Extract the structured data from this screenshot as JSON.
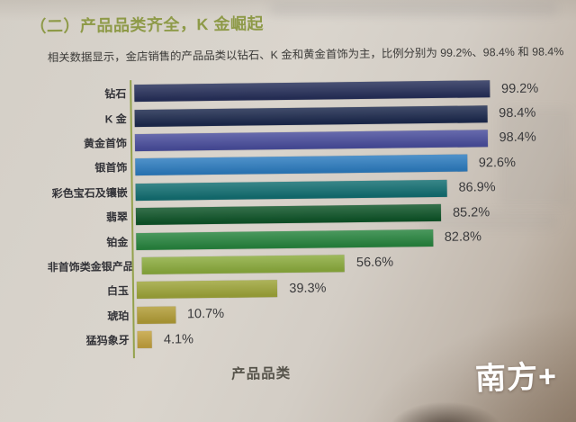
{
  "page": {
    "title": "（二）产品品类齐全，K 金崛起",
    "subtitle": "相关数据显示，金店销售的产品品类以钻石、K 金和黄金首饰为主，比例分别为 99.2%、98.4% 和 98.4%"
  },
  "chart_data": {
    "type": "bar",
    "orientation": "horizontal",
    "title": "",
    "xlabel": "产品品类",
    "ylabel": "",
    "xlim": [
      0,
      100
    ],
    "grid": false,
    "legend": false,
    "value_suffix": "%",
    "categories": [
      "钻石",
      "K 金",
      "黄金首饰",
      "银首饰",
      "彩色宝石及镶嵌",
      "翡翠",
      "铂金",
      "非首饰类金银产品",
      "白玉",
      "琥珀",
      "猛犸象牙"
    ],
    "values": [
      99.2,
      98.4,
      98.4,
      92.6,
      86.9,
      85.2,
      82.8,
      56.6,
      39.3,
      10.7,
      4.1
    ],
    "value_labels": [
      "99.2%",
      "98.4%",
      "98.4%",
      "92.6%",
      "86.9%",
      "85.2%",
      "82.8%",
      "56.6%",
      "39.3%",
      "10.7%",
      "4.1%"
    ],
    "bar_colors": [
      "#27305a",
      "#1d2a4e",
      "#4a4e9d",
      "#2e7dc0",
      "#136f72",
      "#0f5529",
      "#28853f",
      "#8cac3e",
      "#9ea53a",
      "#b29d37",
      "#c3a23f"
    ],
    "axis_color": "#93a14b"
  },
  "logo": {
    "text": "南方+"
  },
  "colors": {
    "title": "#8e9a48",
    "subtitle_text": "#3c3b39",
    "category_text": "#333338",
    "value_text": "#39393b",
    "xlabel_text": "#56534a",
    "logo_text": "#ffffff"
  }
}
